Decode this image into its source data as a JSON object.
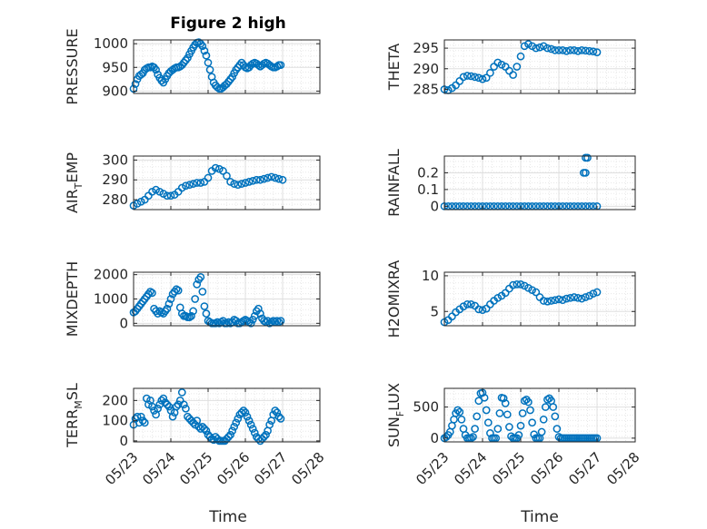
{
  "figure": {
    "title": "Figure 2 high",
    "marker_color": "#0072BD",
    "axis_color": "#262626",
    "grid_color": "#dfdfdf",
    "x_tick_labels": [
      "05/23",
      "05/24",
      "05/25",
      "05/26",
      "05/27",
      "05/28"
    ],
    "x_axis_label": "Time"
  },
  "chart_data": [
    {
      "type": "scatter",
      "ylabel": "PRESSURE",
      "ylim": [
        895,
        1008
      ],
      "yticks": [
        900,
        950,
        1000
      ],
      "yticklabels": [
        "900",
        "950",
        "1000"
      ],
      "x": [
        0.0,
        0.05,
        0.1,
        0.15,
        0.2,
        0.25,
        0.3,
        0.35,
        0.4,
        0.45,
        0.5,
        0.55,
        0.6,
        0.65,
        0.7,
        0.75,
        0.8,
        0.85,
        0.9,
        0.95,
        1.0,
        1.05,
        1.1,
        1.15,
        1.2,
        1.25,
        1.3,
        1.35,
        1.4,
        1.45,
        1.5,
        1.55,
        1.6,
        1.65,
        1.7,
        1.75,
        1.8,
        1.85,
        1.9,
        1.95,
        2.0,
        2.05,
        2.1,
        2.15,
        2.2,
        2.25,
        2.3,
        2.35,
        2.4,
        2.45,
        2.5,
        2.55,
        2.6,
        2.65,
        2.7,
        2.75,
        2.8,
        2.85,
        2.9,
        2.95,
        3.0,
        3.05,
        3.1,
        3.15,
        3.2,
        3.25,
        3.3,
        3.35,
        3.4,
        3.45,
        3.5,
        3.55,
        3.6,
        3.65,
        3.7,
        3.75,
        3.8,
        3.85,
        3.9,
        3.95
      ],
      "y": [
        905,
        915,
        925,
        932,
        935,
        938,
        945,
        948,
        950,
        950,
        952,
        950,
        945,
        935,
        928,
        922,
        918,
        925,
        932,
        938,
        942,
        945,
        948,
        950,
        950,
        952,
        955,
        960,
        965,
        970,
        978,
        985,
        992,
        998,
        1002,
        1003,
        1000,
        995,
        985,
        975,
        960,
        945,
        930,
        918,
        912,
        908,
        905,
        905,
        908,
        912,
        915,
        920,
        925,
        930,
        938,
        945,
        950,
        955,
        960,
        955,
        950,
        948,
        950,
        955,
        958,
        960,
        958,
        955,
        952,
        955,
        958,
        960,
        958,
        955,
        952,
        950,
        950,
        952,
        955,
        955
      ],
      "y_note": "daily"
    },
    {
      "type": "scatter",
      "ylabel": "THETA",
      "ylim": [
        284,
        297
      ],
      "yticks": [
        285,
        290,
        295
      ],
      "yticklabels": [
        "285",
        "290",
        "295"
      ],
      "x": [
        0.0,
        0.1,
        0.2,
        0.3,
        0.4,
        0.5,
        0.6,
        0.7,
        0.8,
        0.9,
        1.0,
        1.1,
        1.2,
        1.3,
        1.4,
        1.5,
        1.6,
        1.7,
        1.8,
        1.9,
        2.0,
        2.1,
        2.2,
        2.3,
        2.4,
        2.5,
        2.6,
        2.7,
        2.8,
        2.9,
        3.0,
        3.1,
        3.2,
        3.3,
        3.4,
        3.5,
        3.6,
        3.7,
        3.8,
        3.9,
        4.0
      ],
      "y": [
        285,
        284.8,
        285.3,
        286,
        287,
        288,
        288.3,
        288.2,
        288,
        287.8,
        287.5,
        287.8,
        289,
        290.5,
        291.5,
        291,
        290.5,
        289.5,
        288.5,
        290.5,
        293,
        295.5,
        296,
        295.5,
        295,
        295.2,
        295.5,
        295,
        294.8,
        294.5,
        294.5,
        294.5,
        294.3,
        294.5,
        294.5,
        294.3,
        294.5,
        294.4,
        294.3,
        294.2,
        294
      ]
    },
    {
      "type": "scatter",
      "ylabel": "AIR_TEMP",
      "ylim": [
        275,
        302
      ],
      "yticks": [
        280,
        290,
        300
      ],
      "yticklabels": [
        "280",
        "290",
        "300"
      ],
      "x": [
        0.0,
        0.1,
        0.2,
        0.3,
        0.4,
        0.5,
        0.6,
        0.7,
        0.8,
        0.9,
        1.0,
        1.1,
        1.2,
        1.3,
        1.4,
        1.5,
        1.6,
        1.7,
        1.8,
        1.9,
        2.0,
        2.1,
        2.2,
        2.3,
        2.4,
        2.5,
        2.6,
        2.7,
        2.8,
        2.9,
        3.0,
        3.1,
        3.2,
        3.3,
        3.4,
        3.5,
        3.6,
        3.7,
        3.8,
        3.9,
        4.0
      ],
      "y": [
        277,
        278,
        279,
        280,
        282,
        284,
        285,
        284,
        283,
        282,
        282,
        282.5,
        284,
        286,
        287,
        287.5,
        288,
        288.5,
        288.5,
        289,
        291,
        294.5,
        296,
        295.5,
        294.5,
        292,
        289,
        288,
        287.5,
        288,
        288.5,
        289,
        289.5,
        290,
        290,
        290.5,
        291,
        291.5,
        291,
        290.5,
        290
      ]
    },
    {
      "type": "scatter",
      "ylabel": "RAINFALL",
      "ylim": [
        -0.02,
        0.3
      ],
      "yticks": [
        0,
        0.1,
        0.2
      ],
      "yticklabels": [
        "0",
        "0.1",
        "0.2"
      ],
      "x": [
        0.0,
        0.1,
        0.2,
        0.3,
        0.4,
        0.5,
        0.6,
        0.7,
        0.8,
        0.9,
        1.0,
        1.1,
        1.2,
        1.3,
        1.4,
        1.5,
        1.6,
        1.7,
        1.8,
        1.9,
        2.0,
        2.1,
        2.2,
        2.3,
        2.4,
        2.5,
        2.6,
        2.7,
        2.8,
        2.9,
        3.0,
        3.1,
        3.2,
        3.3,
        3.4,
        3.5,
        3.6,
        3.7,
        3.8,
        3.9,
        4.0,
        3.65,
        3.7,
        3.7,
        3.75
      ],
      "y": [
        0,
        0,
        0,
        0,
        0,
        0,
        0,
        0,
        0,
        0,
        0,
        0,
        0,
        0,
        0,
        0,
        0,
        0,
        0,
        0,
        0,
        0,
        0,
        0,
        0,
        0,
        0,
        0,
        0,
        0,
        0,
        0,
        0,
        0,
        0,
        0,
        0,
        0,
        0,
        0,
        0,
        0.2,
        0.2,
        0.29,
        0.29
      ]
    },
    {
      "type": "scatter",
      "ylabel": "MIXDEPTH",
      "ylim": [
        -100,
        2100
      ],
      "yticks": [
        0,
        1000,
        2000
      ],
      "yticklabels": [
        "0",
        "1000",
        "2000"
      ],
      "x": [
        0.0,
        0.05,
        0.1,
        0.15,
        0.2,
        0.25,
        0.3,
        0.35,
        0.4,
        0.45,
        0.5,
        0.55,
        0.6,
        0.65,
        0.7,
        0.75,
        0.8,
        0.85,
        0.9,
        0.95,
        1.0,
        1.05,
        1.1,
        1.15,
        1.2,
        1.25,
        1.3,
        1.35,
        1.4,
        1.45,
        1.5,
        1.55,
        1.6,
        1.65,
        1.7,
        1.75,
        1.8,
        1.85,
        1.9,
        1.95,
        2.0,
        2.05,
        2.1,
        2.15,
        2.2,
        2.25,
        2.3,
        2.35,
        2.4,
        2.45,
        2.5,
        2.55,
        2.6,
        2.65,
        2.7,
        2.75,
        2.8,
        2.85,
        2.9,
        2.95,
        3.0,
        3.05,
        3.1,
        3.15,
        3.2,
        3.25,
        3.3,
        3.35,
        3.4,
        3.45,
        3.5,
        3.55,
        3.6,
        3.65,
        3.7,
        3.75,
        3.8,
        3.85,
        3.9,
        3.95
      ],
      "y": [
        450,
        500,
        600,
        700,
        800,
        900,
        1000,
        1100,
        1200,
        1300,
        1250,
        600,
        500,
        400,
        500,
        450,
        400,
        500,
        600,
        800,
        1000,
        1200,
        1300,
        1400,
        1350,
        650,
        400,
        300,
        300,
        250,
        250,
        300,
        500,
        1000,
        1600,
        1800,
        1900,
        1300,
        700,
        400,
        100,
        50,
        0,
        0,
        0,
        50,
        0,
        50,
        100,
        0,
        0,
        50,
        0,
        50,
        150,
        100,
        0,
        0,
        50,
        100,
        150,
        100,
        50,
        0,
        150,
        300,
        500,
        600,
        400,
        200,
        100,
        50,
        100,
        0,
        50,
        100,
        50,
        100,
        50,
        100
      ]
    },
    {
      "type": "scatter",
      "ylabel": "H2OMIXRA",
      "ylim": [
        3,
        10.5
      ],
      "yticks": [
        5,
        10
      ],
      "yticklabels": [
        "5",
        "10"
      ],
      "x": [
        0.0,
        0.1,
        0.2,
        0.3,
        0.4,
        0.5,
        0.6,
        0.7,
        0.8,
        0.9,
        1.0,
        1.1,
        1.2,
        1.3,
        1.4,
        1.5,
        1.6,
        1.7,
        1.8,
        1.9,
        2.0,
        2.1,
        2.2,
        2.3,
        2.4,
        2.5,
        2.6,
        2.7,
        2.8,
        2.9,
        3.0,
        3.1,
        3.2,
        3.3,
        3.4,
        3.5,
        3.6,
        3.7,
        3.8,
        3.9,
        4.0
      ],
      "y": [
        3.5,
        3.8,
        4.3,
        4.9,
        5.3,
        5.7,
        6,
        6,
        5.8,
        5.3,
        5.2,
        5.4,
        6,
        6.5,
        6.9,
        7.2,
        7.6,
        8.2,
        8.7,
        8.8,
        8.8,
        8.6,
        8.3,
        8,
        7.7,
        7,
        6.5,
        6.4,
        6.5,
        6.6,
        6.7,
        6.6,
        6.8,
        6.9,
        7,
        6.9,
        6.8,
        7,
        7.2,
        7.5,
        7.7
      ]
    },
    {
      "type": "scatter",
      "ylabel": "TERR_MSL",
      "ylim": [
        -5,
        260
      ],
      "yticks": [
        0,
        100,
        200
      ],
      "yticklabels": [
        "0",
        "100",
        "200"
      ],
      "x": [
        0.0,
        0.05,
        0.1,
        0.15,
        0.2,
        0.25,
        0.3,
        0.35,
        0.4,
        0.45,
        0.5,
        0.55,
        0.6,
        0.65,
        0.7,
        0.75,
        0.8,
        0.85,
        0.9,
        0.95,
        1.0,
        1.05,
        1.1,
        1.15,
        1.2,
        1.25,
        1.3,
        1.35,
        1.4,
        1.45,
        1.5,
        1.55,
        1.6,
        1.65,
        1.7,
        1.75,
        1.8,
        1.85,
        1.9,
        1.95,
        2.0,
        2.05,
        2.1,
        2.15,
        2.2,
        2.25,
        2.3,
        2.35,
        2.4,
        2.45,
        2.5,
        2.55,
        2.6,
        2.65,
        2.7,
        2.75,
        2.8,
        2.85,
        2.9,
        2.95,
        3.0,
        3.05,
        3.1,
        3.15,
        3.2,
        3.25,
        3.3,
        3.35,
        3.4,
        3.45,
        3.5,
        3.55,
        3.6,
        3.65,
        3.7,
        3.75,
        3.8,
        3.85,
        3.9,
        3.95
      ],
      "y": [
        80,
        110,
        120,
        90,
        120,
        100,
        90,
        210,
        180,
        200,
        170,
        150,
        130,
        160,
        180,
        200,
        210,
        190,
        180,
        170,
        150,
        120,
        140,
        170,
        180,
        200,
        240,
        180,
        160,
        120,
        110,
        100,
        90,
        80,
        100,
        70,
        60,
        70,
        60,
        50,
        30,
        20,
        10,
        5,
        20,
        10,
        0,
        0,
        0,
        0,
        10,
        20,
        30,
        50,
        70,
        90,
        110,
        130,
        140,
        150,
        140,
        120,
        100,
        80,
        60,
        40,
        20,
        10,
        0,
        10,
        20,
        30,
        50,
        80,
        100,
        130,
        150,
        140,
        120,
        110
      ]
    },
    {
      "type": "scatter",
      "ylabel": "SUN_FLUX",
      "ylim": [
        -60,
        800
      ],
      "yticks": [
        0,
        500
      ],
      "yticklabels": [
        "0",
        "500"
      ],
      "x": [
        0.0,
        0.05,
        0.1,
        0.15,
        0.2,
        0.25,
        0.3,
        0.35,
        0.4,
        0.45,
        0.5,
        0.55,
        0.6,
        0.65,
        0.7,
        0.75,
        0.8,
        0.85,
        0.9,
        0.95,
        1.0,
        1.05,
        1.1,
        1.15,
        1.2,
        1.25,
        1.3,
        1.35,
        1.4,
        1.45,
        1.5,
        1.55,
        1.6,
        1.65,
        1.7,
        1.75,
        1.8,
        1.85,
        1.9,
        1.95,
        2.0,
        2.05,
        2.1,
        2.15,
        2.2,
        2.25,
        2.3,
        2.35,
        2.4,
        2.45,
        2.5,
        2.55,
        2.6,
        2.65,
        2.7,
        2.75,
        2.8,
        2.85,
        2.9,
        2.95,
        3.0,
        3.05,
        3.1,
        3.15,
        3.2,
        3.25,
        3.3,
        3.35,
        3.4,
        3.45,
        3.5,
        3.55,
        3.6,
        3.65,
        3.7,
        3.75,
        3.8,
        3.85,
        3.9,
        3.95,
        4.0
      ],
      "y": [
        0,
        20,
        50,
        100,
        200,
        300,
        400,
        450,
        420,
        300,
        150,
        50,
        0,
        0,
        0,
        20,
        150,
        350,
        600,
        720,
        730,
        650,
        450,
        250,
        80,
        0,
        0,
        0,
        150,
        400,
        650,
        640,
        560,
        380,
        180,
        30,
        0,
        0,
        0,
        50,
        200,
        400,
        600,
        620,
        580,
        450,
        250,
        60,
        0,
        0,
        0,
        100,
        300,
        500,
        620,
        640,
        600,
        500,
        350,
        150,
        20,
        0,
        0,
        0,
        0,
        0,
        0,
        0,
        0,
        0,
        0,
        0,
        0,
        0,
        0,
        0,
        0,
        0,
        0,
        0,
        0
      ]
    }
  ]
}
